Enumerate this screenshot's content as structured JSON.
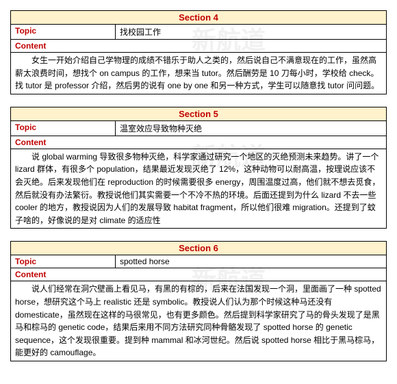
{
  "watermark": "新航道",
  "sections": [
    {
      "header": "Section 4",
      "topic_label": "Topic",
      "topic_value": "找校园工作",
      "content_label": "Content",
      "content_body": "女生一开始介绍自己学物理的成绩不错乐于助人之类的，然后说自己不满意现在的工作，虽然高薪太浪费时间，想找个 on campus 的工作，想来当 tutor。然后酬劳是 10 刀每小时，学校给 check。找 tutor 是 professor 介绍，然后男的说有 one by one 和另一种方式，学生可以随意找 tutor 问问题。"
    },
    {
      "header": "Section 5",
      "topic_label": "Topic",
      "topic_value": "温室效应导致物种灭绝",
      "content_label": "Content",
      "content_body": "说 global warming 导致很多物种灭绝，科学家通过研究一个地区的灭绝预测未来趋势。讲了一个 lizard 群体，有很多个 population，结果最近发现灭绝了 12%，这种动物可以耐高温，按理说应该不会灭绝。后来发现他们在 reproduction 的时候需要很多 energy，周围温度过高，他们就不想去觅食，然后就没有办法繁衍。教授说他们其实需要一个不冷不热的环境。后面还提到为什么 lizard 不去一些 cooler 的地方，教授说因为人们的发展导致 habitat fragment，所以他们很难 migration。还提到了蚊子啥的，好像说的是对 climate 的适应性"
    },
    {
      "header": "Section 6",
      "topic_label": "Topic",
      "topic_value": "spotted horse",
      "content_label": "Content",
      "content_body": "说人们经常在洞穴壁画上看见马，有黑的有棕的，后来在法国发现一个洞，里面画了一种 spotted horse，想研究这个马上 realistic 还是 symbolic。教授说人们认为那个时候这种马还没有 domesticate，虽然现在这样的马很常见，也有更多颜色。然后提到科学家研究了马的骨头发现了是黑马和棕马的 genetic code，结果后来用不同方法研究同种骨骼发现了 spotted horse 的 genetic sequence，这个发现很重要。提到种 mammal 和冰河世纪。然后说 spotted horse 相比于黑马棕马，能更好的 camouflage。"
    }
  ]
}
